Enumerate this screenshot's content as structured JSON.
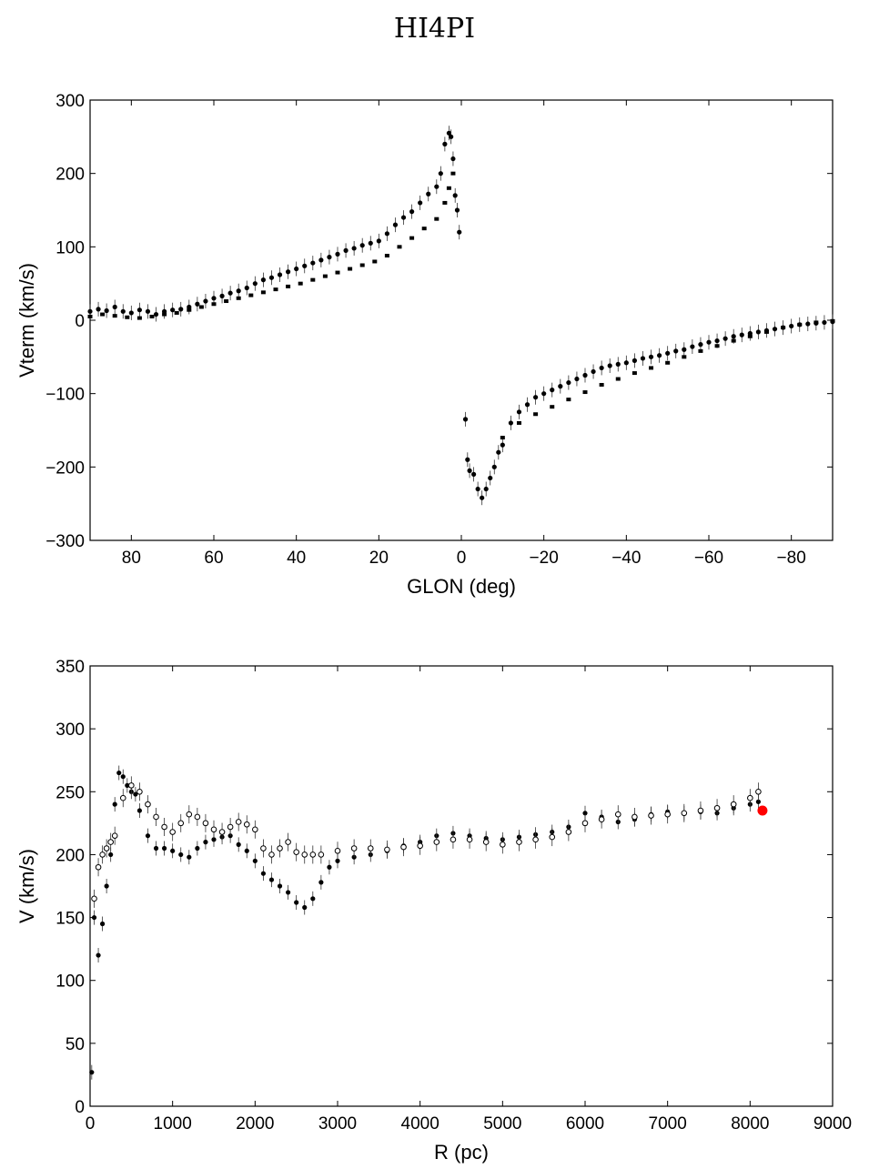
{
  "title": "HI4PI",
  "chart_data": [
    {
      "type": "scatter",
      "xlabel": "GLON (deg)",
      "ylabel": "Vterm (km/s)",
      "xlim": [
        90,
        -90
      ],
      "ylim": [
        -300,
        300
      ],
      "xticks": [
        80,
        60,
        40,
        20,
        0,
        -20,
        -40,
        -60,
        -80
      ],
      "yticks": [
        300,
        200,
        100,
        0,
        -100,
        -200,
        -300
      ],
      "xtick_labels": [
        "80",
        "60",
        "40",
        "20",
        "0",
        "−20",
        "−40",
        "−60",
        "−80"
      ],
      "ytick_labels": [
        "300",
        "200",
        "100",
        "0",
        "−100",
        "−200",
        "−300"
      ],
      "grid": false,
      "series": [
        {
          "marker": "filled-circle",
          "color": "#000000",
          "x": [
            90,
            88,
            86,
            84,
            82,
            80,
            78,
            76,
            74,
            72,
            70,
            68,
            66,
            64,
            62,
            60,
            58,
            56,
            54,
            52,
            50,
            48,
            46,
            44,
            42,
            40,
            38,
            36,
            34,
            32,
            30,
            28,
            26,
            24,
            22,
            20,
            18,
            16,
            14,
            12,
            10,
            8,
            6,
            5,
            4,
            3,
            2.5,
            2,
            1.5,
            1,
            0.5,
            -1,
            -1.5,
            -2,
            -3,
            -4,
            -5,
            -6,
            -7,
            -8,
            -9,
            -10,
            -12,
            -14,
            -16,
            -18,
            -20,
            -22,
            -24,
            -26,
            -28,
            -30,
            -32,
            -34,
            -36,
            -38,
            -40,
            -42,
            -44,
            -46,
            -48,
            -50,
            -52,
            -54,
            -56,
            -58,
            -60,
            -62,
            -64,
            -66,
            -68,
            -70,
            -72,
            -74,
            -76,
            -78,
            -80,
            -82,
            -84,
            -86,
            -88,
            -90
          ],
          "y": [
            12,
            15,
            13,
            18,
            12,
            10,
            14,
            12,
            8,
            12,
            14,
            15,
            18,
            22,
            26,
            30,
            33,
            37,
            40,
            44,
            50,
            55,
            58,
            62,
            66,
            70,
            74,
            78,
            82,
            86,
            90,
            95,
            98,
            102,
            105,
            108,
            118,
            130,
            140,
            148,
            160,
            172,
            182,
            200,
            240,
            255,
            250,
            220,
            170,
            150,
            120,
            -135,
            -190,
            -205,
            -210,
            -230,
            -242,
            -230,
            -215,
            -200,
            -180,
            -170,
            -140,
            -125,
            -115,
            -105,
            -100,
            -95,
            -90,
            -85,
            -80,
            -75,
            -70,
            -65,
            -62,
            -60,
            -58,
            -55,
            -52,
            -50,
            -48,
            -45,
            -42,
            -40,
            -36,
            -33,
            -30,
            -28,
            -25,
            -22,
            -20,
            -18,
            -16,
            -14,
            -12,
            -10,
            -8,
            -6,
            -5,
            -4,
            -3,
            -2
          ]
        },
        {
          "marker": "filled-square",
          "color": "#000000",
          "x": [
            90,
            87,
            84,
            81,
            78,
            75,
            72,
            69,
            66,
            63,
            60,
            57,
            54,
            51,
            48,
            45,
            42,
            39,
            36,
            33,
            30,
            27,
            24,
            21,
            18,
            15,
            12,
            9,
            6,
            4,
            3,
            2,
            -10,
            -14,
            -18,
            -22,
            -26,
            -30,
            -34,
            -38,
            -42,
            -46,
            -50,
            -54,
            -58,
            -62,
            -66,
            -70,
            -74,
            -78,
            -82,
            -86,
            -90
          ],
          "y": [
            5,
            8,
            6,
            4,
            3,
            5,
            8,
            10,
            14,
            18,
            22,
            26,
            30,
            34,
            38,
            42,
            46,
            50,
            55,
            60,
            65,
            70,
            75,
            80,
            88,
            100,
            112,
            125,
            138,
            160,
            180,
            200,
            -160,
            -140,
            -128,
            -118,
            -108,
            -98,
            -88,
            -80,
            -72,
            -65,
            -58,
            -50,
            -42,
            -35,
            -28,
            -22,
            -16,
            -10,
            -6,
            -3,
            -1
          ]
        }
      ]
    },
    {
      "type": "scatter",
      "xlabel": "R (pc)",
      "ylabel": "V (km/s)",
      "xlim": [
        0,
        9000
      ],
      "ylim": [
        0,
        350
      ],
      "xticks": [
        0,
        1000,
        2000,
        3000,
        4000,
        5000,
        6000,
        7000,
        8000,
        9000
      ],
      "yticks": [
        0,
        50,
        100,
        150,
        200,
        250,
        300,
        350
      ],
      "xtick_labels": [
        "0",
        "1000",
        "2000",
        "3000",
        "4000",
        "5000",
        "6000",
        "7000",
        "8000",
        "9000"
      ],
      "ytick_labels": [
        "0",
        "50",
        "100",
        "150",
        "200",
        "250",
        "300",
        "350"
      ],
      "grid": false,
      "series": [
        {
          "marker": "filled-circle",
          "color": "#000000",
          "x": [
            20,
            50,
            100,
            150,
            200,
            250,
            300,
            350,
            400,
            450,
            500,
            550,
            600,
            700,
            800,
            900,
            1000,
            1100,
            1200,
            1300,
            1400,
            1500,
            1600,
            1700,
            1800,
            1900,
            2000,
            2100,
            2200,
            2300,
            2400,
            2500,
            2600,
            2700,
            2800,
            2900,
            3000,
            3200,
            3400,
            3600,
            3800,
            4000,
            4200,
            4400,
            4600,
            4800,
            5000,
            5200,
            5400,
            5600,
            5800,
            6000,
            6200,
            6400,
            6600,
            6800,
            7000,
            7200,
            7400,
            7600,
            7800,
            8000,
            8100
          ],
          "y": [
            27,
            150,
            120,
            145,
            175,
            200,
            240,
            265,
            262,
            255,
            250,
            248,
            235,
            215,
            205,
            205,
            203,
            200,
            198,
            205,
            210,
            212,
            214,
            215,
            208,
            203,
            195,
            185,
            180,
            175,
            170,
            162,
            158,
            165,
            178,
            190,
            195,
            198,
            200,
            203,
            207,
            210,
            215,
            217,
            215,
            213,
            212,
            214,
            216,
            218,
            222,
            233,
            230,
            226,
            228,
            232,
            234,
            233,
            234,
            233,
            237,
            240,
            242
          ]
        },
        {
          "marker": "open-circle",
          "color": "#000000",
          "x": [
            50,
            100,
            150,
            200,
            250,
            300,
            400,
            500,
            600,
            700,
            800,
            900,
            1000,
            1100,
            1200,
            1300,
            1400,
            1500,
            1600,
            1700,
            1800,
            1900,
            2000,
            2100,
            2200,
            2300,
            2400,
            2500,
            2600,
            2700,
            2800,
            3000,
            3200,
            3400,
            3600,
            3800,
            4000,
            4200,
            4400,
            4600,
            4800,
            5000,
            5200,
            5400,
            5600,
            5800,
            6000,
            6200,
            6400,
            6600,
            6800,
            7000,
            7200,
            7400,
            7600,
            7800,
            8000,
            8100
          ],
          "y": [
            165,
            190,
            200,
            205,
            210,
            215,
            245,
            255,
            250,
            240,
            230,
            222,
            218,
            225,
            232,
            230,
            225,
            220,
            218,
            222,
            226,
            224,
            220,
            205,
            200,
            205,
            210,
            202,
            200,
            200,
            200,
            203,
            205,
            205,
            204,
            206,
            207,
            210,
            212,
            212,
            210,
            208,
            210,
            212,
            214,
            218,
            225,
            228,
            232,
            230,
            231,
            232,
            233,
            235,
            237,
            240,
            245,
            250
          ]
        },
        {
          "name": "",
          "marker": "big-filled-circle",
          "color": "#ff0000",
          "x": [
            8150
          ],
          "y": [
            235
          ]
        }
      ]
    }
  ]
}
